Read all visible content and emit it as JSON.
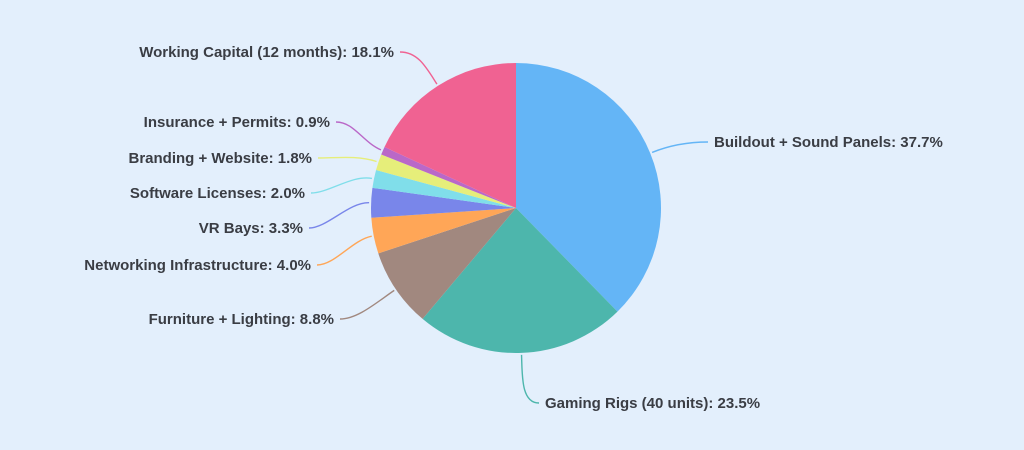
{
  "chart_data": {
    "type": "pie",
    "title": "",
    "slices": [
      {
        "label": "Buildout + Sound Panels",
        "value": 37.7,
        "display": "Buildout + Sound Panels: 37.7%",
        "color": "#64b5f6"
      },
      {
        "label": "Gaming Rigs (40 units)",
        "value": 23.5,
        "display": "Gaming Rigs (40 units): 23.5%",
        "color": "#4db6ac"
      },
      {
        "label": "Furniture + Lighting",
        "value": 8.8,
        "display": "Furniture + Lighting: 8.8%",
        "color": "#a1887f"
      },
      {
        "label": "Networking Infrastructure",
        "value": 4.0,
        "display": "Networking Infrastructure: 4.0%",
        "color": "#ffa657"
      },
      {
        "label": "VR Bays",
        "value": 3.3,
        "display": "VR Bays: 3.3%",
        "color": "#7986ea"
      },
      {
        "label": "Software Licenses",
        "value": 2.0,
        "display": "Software Licenses: 2.0%",
        "color": "#80deea"
      },
      {
        "label": "Branding + Website",
        "value": 1.8,
        "display": "Branding + Website: 1.8%",
        "color": "#e6ee7a"
      },
      {
        "label": "Insurance + Permits",
        "value": 0.9,
        "display": "Insurance + Permits: 0.9%",
        "color": "#ba68c8"
      },
      {
        "label": "Working Capital (12 months)",
        "value": 18.1,
        "display": "Working Capital (12 months): 18.1%",
        "color": "#f06292"
      }
    ],
    "start_angle": "12 o'clock",
    "direction": "clockwise",
    "legend": "none"
  }
}
